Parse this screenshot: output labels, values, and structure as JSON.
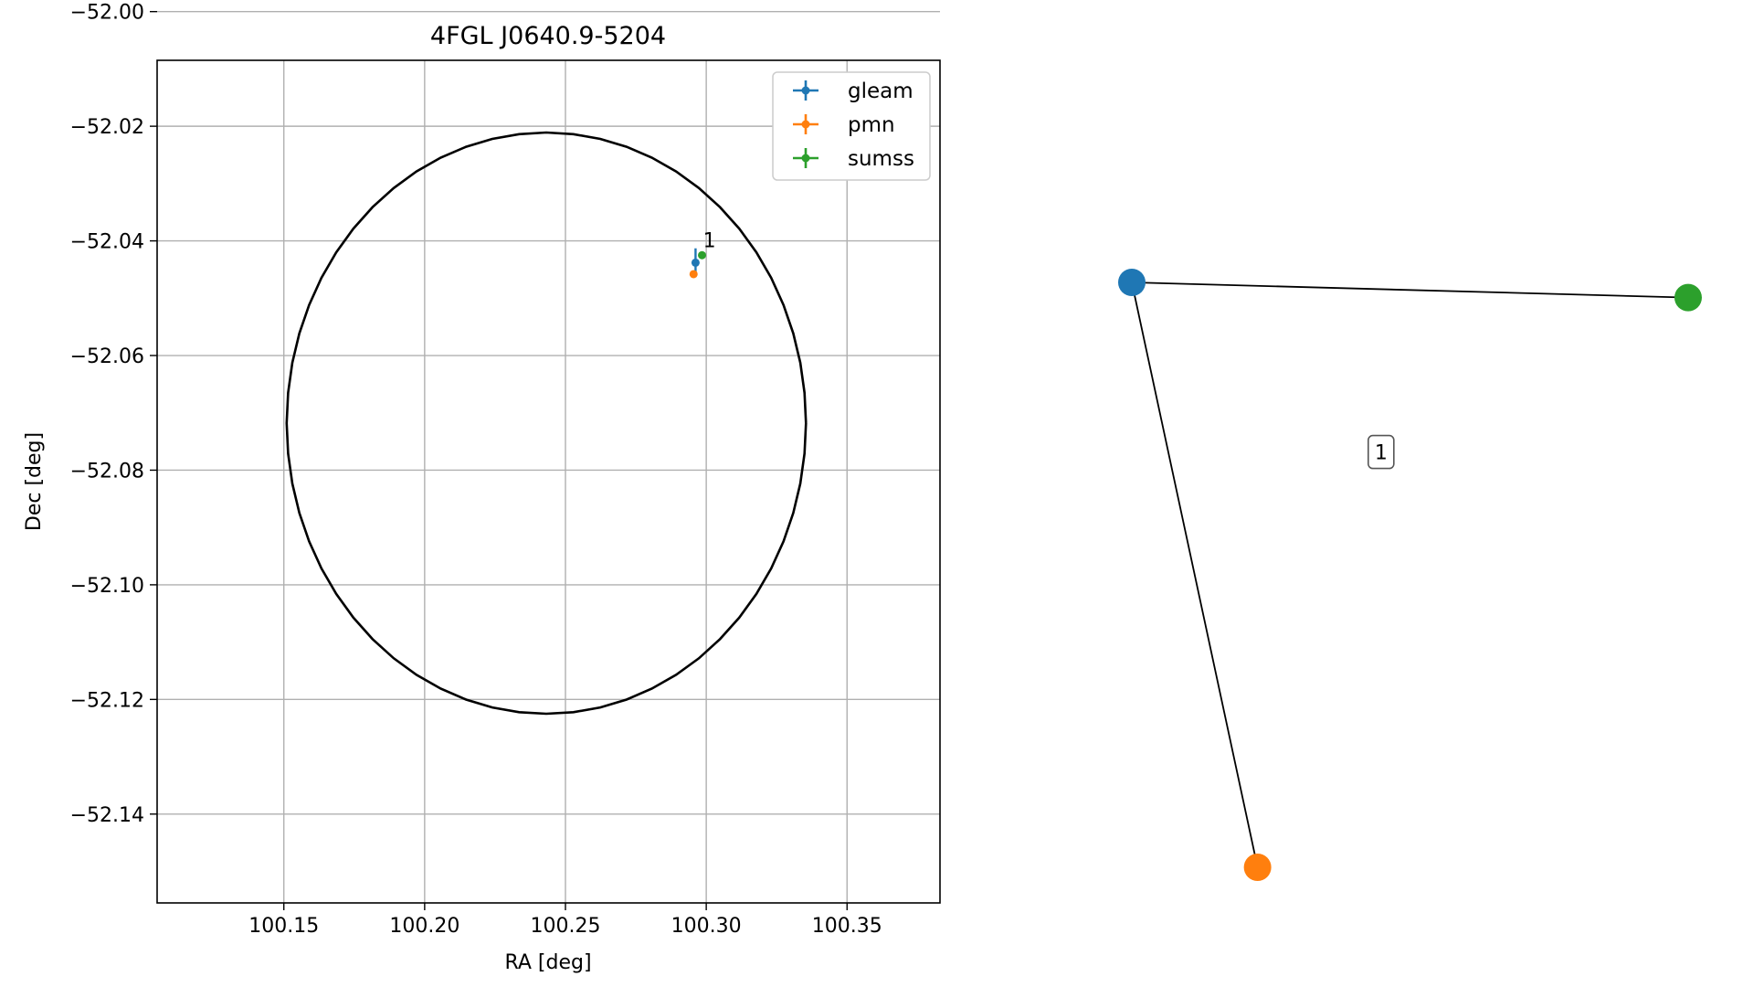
{
  "chart_data": [
    {
      "type": "scatter",
      "title": "4FGL J0640.9-5204",
      "xlabel": "RA [deg]",
      "ylabel": "Dec [deg]",
      "xlim": [
        100.105,
        100.383
      ],
      "ylim": [
        -52.1555,
        -52.0085
      ],
      "xticks": [
        100.15,
        100.2,
        100.25,
        100.3,
        100.35
      ],
      "xtick_labels": [
        "100.15",
        "100.20",
        "100.25",
        "100.30",
        "100.35"
      ],
      "yticks": [
        -52.0,
        -52.02,
        -52.04,
        -52.06,
        -52.08,
        -52.1,
        -52.12,
        -52.14
      ],
      "ytick_labels": [
        "−52.00",
        "−52.02",
        "−52.04",
        "−52.06",
        "−52.08",
        "−52.10",
        "−52.12",
        "−52.14"
      ],
      "grid": true,
      "legend_position": "top-right",
      "series": [
        {
          "name": "gleam",
          "color": "#1f77b4",
          "points": [
            {
              "x": 100.2962,
              "y": -52.0438,
              "xerr": 0.0003,
              "yerr": 0.0025
            }
          ]
        },
        {
          "name": "pmn",
          "color": "#ff7f0e",
          "points": [
            {
              "x": 100.2955,
              "y": -52.0458,
              "xerr": 0.0003,
              "yerr": 0.0004
            }
          ]
        },
        {
          "name": "sumss",
          "color": "#2ca02c",
          "points": [
            {
              "x": 100.2985,
              "y": -52.0425,
              "xerr": 0.0008,
              "yerr": 0.0004
            }
          ]
        }
      ],
      "ellipse": {
        "center_x": 100.2432,
        "center_y": -52.0718,
        "semi_ra": 0.0922,
        "semi_dec": 0.0507,
        "color": "#000000"
      },
      "annotations": [
        {
          "text": "1",
          "x": 100.2995,
          "y": -52.0405
        }
      ]
    },
    {
      "type": "network",
      "nodes": [
        {
          "id": "gleam",
          "color": "#1f77b4",
          "x": 0.0,
          "y": 1.0
        },
        {
          "id": "sumss",
          "color": "#2ca02c",
          "x": 1.0,
          "y": 0.974
        },
        {
          "id": "pmn",
          "color": "#ff7f0e",
          "x": 0.226,
          "y": 0.0
        }
      ],
      "edges": [
        [
          "gleam",
          "sumss"
        ],
        [
          "gleam",
          "pmn"
        ]
      ],
      "label": {
        "text": "1",
        "x": 0.448,
        "y": 0.71
      }
    }
  ]
}
